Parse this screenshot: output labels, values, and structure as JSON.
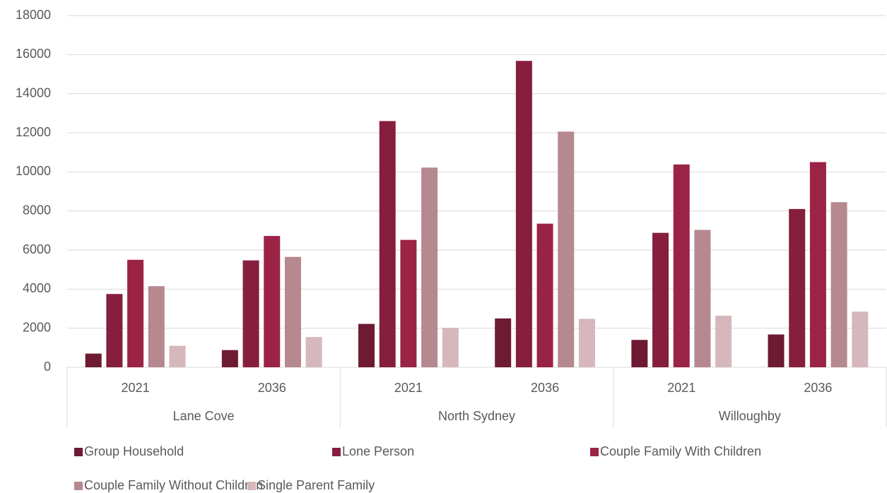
{
  "chart_data": {
    "type": "bar",
    "categories": [
      "2021",
      "2036",
      "2021",
      "2036",
      "2021",
      "2036"
    ],
    "groups": [
      "Lane Cove",
      "North Sydney",
      "Willoughby"
    ],
    "series": [
      {
        "name": "Group Household",
        "color": "#6e1a33",
        "values": [
          700,
          880,
          2220,
          2500,
          1400,
          1680
        ]
      },
      {
        "name": "Lone Person",
        "color": "#861f3d",
        "values": [
          3750,
          5470,
          12600,
          15680,
          6880,
          8100
        ]
      },
      {
        "name": "Couple Family With Children",
        "color": "#9b2446",
        "values": [
          5500,
          6720,
          6520,
          7350,
          10380,
          10500
        ]
      },
      {
        "name": "Couple Family Without Children",
        "color": "#b6888f",
        "values": [
          4150,
          5650,
          10220,
          12060,
          7030,
          8450
        ]
      },
      {
        "name": "Single Parent Family",
        "color": "#d6b8bc",
        "values": [
          1100,
          1550,
          2020,
          2480,
          2640,
          2850
        ]
      }
    ],
    "ylim": [
      0,
      18000
    ],
    "yticks": [
      0,
      2000,
      4000,
      6000,
      8000,
      10000,
      12000,
      14000,
      16000,
      18000
    ],
    "grid": true
  }
}
